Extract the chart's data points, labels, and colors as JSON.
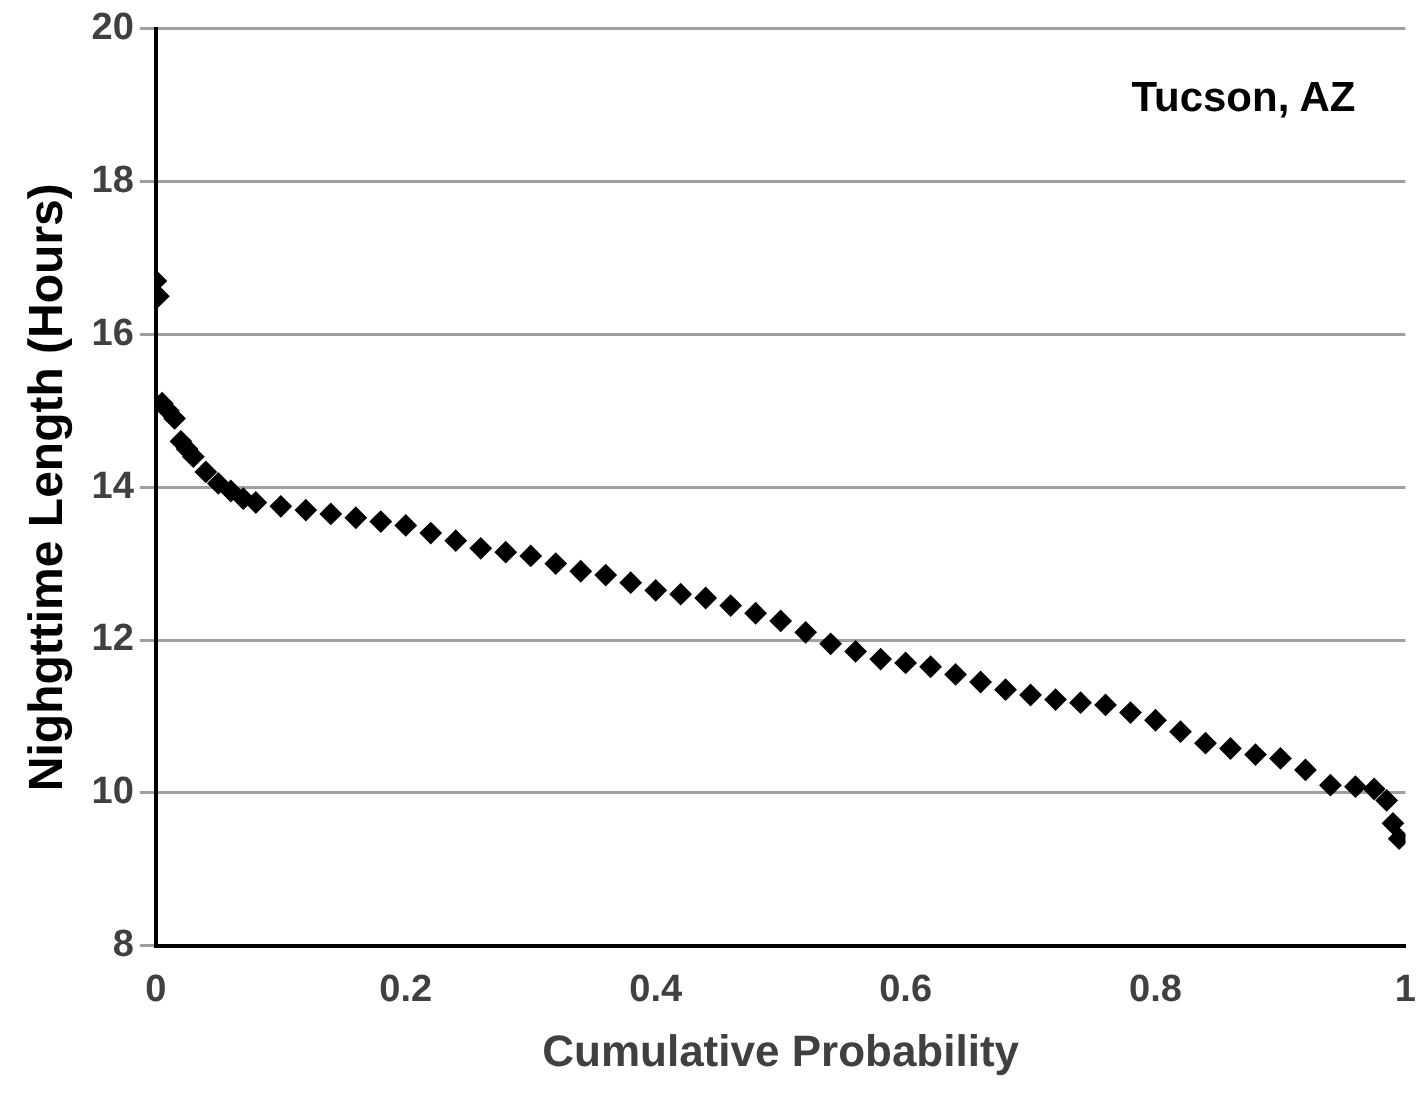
{
  "chart_data": {
    "type": "scatter",
    "xlabel": "Cumulative Probability",
    "ylabel": "Nighgttime Length (Hours)",
    "annotations": [
      "Tucson, AZ"
    ],
    "x": [
      0,
      0.002,
      0.005,
      0.01,
      0.015,
      0.02,
      0.025,
      0.03,
      0.04,
      0.05,
      0.06,
      0.07,
      0.08,
      0.1,
      0.12,
      0.14,
      0.16,
      0.18,
      0.2,
      0.22,
      0.24,
      0.26,
      0.28,
      0.3,
      0.32,
      0.34,
      0.36,
      0.38,
      0.4,
      0.42,
      0.44,
      0.46,
      0.48,
      0.5,
      0.52,
      0.54,
      0.56,
      0.58,
      0.6,
      0.62,
      0.64,
      0.66,
      0.68,
      0.7,
      0.72,
      0.74,
      0.76,
      0.78,
      0.8,
      0.82,
      0.84,
      0.86,
      0.88,
      0.9,
      0.92,
      0.94,
      0.96,
      0.975,
      0.985,
      0.99,
      0.995
    ],
    "series": [
      {
        "color": "#000000",
        "values": [
          16.7,
          16.5,
          15.1,
          15.0,
          14.9,
          14.6,
          14.5,
          14.4,
          14.2,
          14.05,
          13.95,
          13.85,
          13.8,
          13.75,
          13.7,
          13.65,
          13.6,
          13.55,
          13.5,
          13.4,
          13.3,
          13.2,
          13.15,
          13.1,
          13.0,
          12.9,
          12.85,
          12.75,
          12.65,
          12.6,
          12.55,
          12.45,
          12.35,
          12.25,
          12.1,
          11.95,
          11.85,
          11.75,
          11.7,
          11.65,
          11.55,
          11.45,
          11.35,
          11.28,
          11.22,
          11.18,
          11.15,
          11.05,
          10.95,
          10.8,
          10.65,
          10.58,
          10.5,
          10.45,
          10.3,
          10.1,
          10.08,
          10.05,
          9.9,
          9.6,
          9.4
        ]
      }
    ],
    "xlim": [
      0,
      1
    ],
    "xticks": [
      0,
      0.2,
      0.4,
      0.6,
      0.8,
      1
    ],
    "ylim": [
      8,
      20
    ],
    "yticks": [
      8,
      10,
      12,
      14,
      16,
      18,
      20
    ],
    "grid": "y",
    "legend": false,
    "marker": "diamond"
  }
}
